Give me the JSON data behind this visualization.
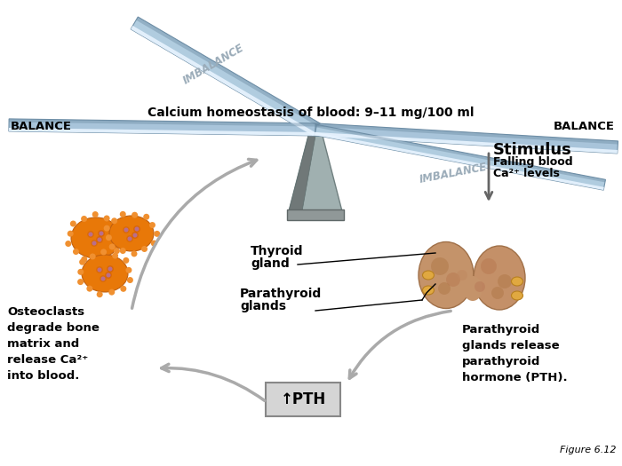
{
  "title": "Calcium homeostasis of blood: 9–11 mg/100 ml",
  "balance_left": "BALANCE",
  "balance_right": "BALANCE",
  "imbalance_top": "IMBALANCE",
  "imbalance_bottom": "IMBALANCE",
  "stimulus_title": "Stimulus",
  "stimulus_desc_line1": "Falling blood",
  "stimulus_desc_line2": "Ca²⁺ levels",
  "thyroid_label_line1": "Thyroid",
  "thyroid_label_line2": "gland",
  "parathyroid_label_line1": "Parathyroid",
  "parathyroid_label_line2": "glands",
  "osteoclast_text": "Osteoclasts\ndegrade bone\nmatrix and\nrelease Ca²⁺\ninto blood.",
  "parathyroid_release": "Parathyroid\nglands release\nparathyroid\nhormone (PTH).",
  "pth_label": "↑PTH",
  "figure_label": "Figure 6.12",
  "bg_color": "#ffffff"
}
